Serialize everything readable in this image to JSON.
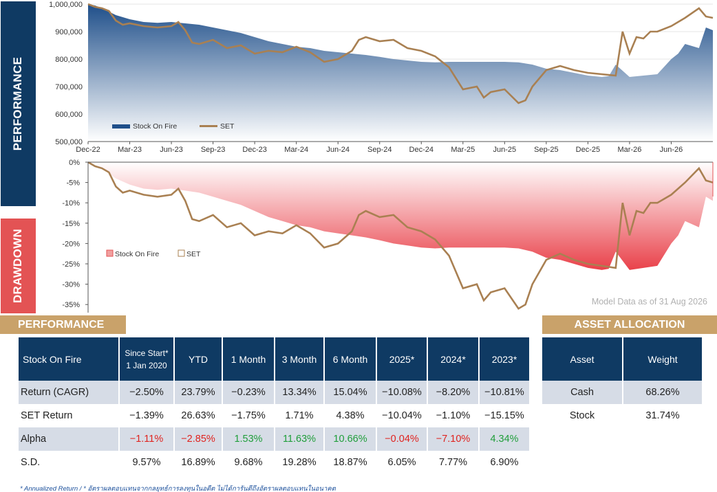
{
  "side_labels": {
    "performance": "PERFORMANCE",
    "drawdown": "DRAWDOWN"
  },
  "colors": {
    "navy": "#0f3a63",
    "red": "#e35354",
    "gold": "#c9a26a",
    "set_line": "#a98052",
    "fund_fill_top": "#1f4f8a",
    "fund_fill_bottom": "#ffffff",
    "dd_fill_top": "#ffffff",
    "dd_fill_bottom": "#e9414a",
    "positive": "#1f9e3a",
    "negative": "#e0221e",
    "row_alt": "#d6dce6"
  },
  "chart_data": [
    {
      "type": "area",
      "name": "performance",
      "x_tick_labels": [
        "Dec-22",
        "Mar-23",
        "Jun-23",
        "Sep-23",
        "Dec-23",
        "Mar-24",
        "Jun-24",
        "Sep-24",
        "Dec-24",
        "Mar-25",
        "Jun-25",
        "Sep-25",
        "Dec-25",
        "Mar-26",
        "Jun-26"
      ],
      "y_tick_labels": [
        "1,000,000",
        "900,000",
        "800,000",
        "700,000",
        "600,000",
        "500,000"
      ],
      "ylim": [
        500000,
        1000000
      ],
      "x_range_months": [
        0,
        45
      ],
      "legend": [
        "Stock On Fire",
        "SET"
      ],
      "legend_position": "bottom-left",
      "series": [
        {
          "name": "Stock On Fire",
          "x": [
            0,
            0.5,
            1,
            2,
            3,
            4,
            5,
            6,
            7,
            8,
            9,
            10,
            11,
            12,
            13,
            14,
            15,
            16,
            17,
            18,
            19,
            20,
            21,
            22,
            23,
            24,
            25,
            26,
            27,
            28,
            29,
            30,
            31,
            32,
            33,
            34,
            35,
            36,
            37,
            37.5,
            38,
            39,
            40,
            41,
            42,
            42.5,
            43,
            44,
            44.5,
            45
          ],
          "y": [
            1000000,
            995000,
            985000,
            960000,
            945000,
            935000,
            932000,
            935000,
            930000,
            925000,
            915000,
            905000,
            895000,
            880000,
            865000,
            855000,
            845000,
            840000,
            830000,
            825000,
            820000,
            815000,
            808000,
            800000,
            795000,
            790000,
            788000,
            790000,
            790000,
            790000,
            790000,
            790000,
            788000,
            780000,
            765000,
            760000,
            750000,
            740000,
            735000,
            738000,
            780000,
            735000,
            740000,
            745000,
            800000,
            820000,
            855000,
            840000,
            915000,
            905000
          ]
        },
        {
          "name": "SET",
          "x": [
            0,
            0.5,
            1,
            1.5,
            2,
            2.5,
            3,
            4,
            5,
            6,
            6.5,
            7,
            7.5,
            8,
            9,
            10,
            11,
            12,
            13,
            14,
            15,
            16,
            17,
            18,
            19,
            19.5,
            20,
            21,
            22,
            23,
            24,
            25,
            26,
            27,
            28,
            28.5,
            29,
            30,
            31,
            31.5,
            32,
            33,
            34,
            35,
            36,
            37,
            38,
            38.5,
            39,
            39.5,
            40,
            40.5,
            41,
            42,
            43,
            44,
            44.5,
            45
          ],
          "y": [
            1000000,
            990000,
            985000,
            975000,
            940000,
            925000,
            930000,
            920000,
            915000,
            920000,
            935000,
            905000,
            860000,
            855000,
            870000,
            840000,
            850000,
            820000,
            830000,
            825000,
            845000,
            825000,
            790000,
            800000,
            830000,
            870000,
            880000,
            865000,
            870000,
            840000,
            830000,
            810000,
            770000,
            690000,
            700000,
            660000,
            680000,
            690000,
            640000,
            650000,
            700000,
            760000,
            775000,
            760000,
            750000,
            745000,
            740000,
            900000,
            820000,
            880000,
            875000,
            900000,
            900000,
            920000,
            950000,
            985000,
            955000,
            950000
          ]
        }
      ]
    },
    {
      "type": "area",
      "name": "drawdown",
      "y_tick_labels": [
        "0%",
        "-5%",
        "-10%",
        "-15%",
        "-20%",
        "-25%",
        "-30%",
        "-35%"
      ],
      "ylim": [
        -0.37,
        0
      ],
      "x_range_months": [
        0,
        45
      ],
      "legend": [
        "Stock On Fire",
        "SET"
      ],
      "legend_position": "bottom-left",
      "series": [
        {
          "name": "Stock On Fire",
          "x": [
            0,
            0.5,
            1,
            2,
            3,
            4,
            5,
            6,
            7,
            8,
            9,
            10,
            11,
            12,
            13,
            14,
            15,
            16,
            17,
            18,
            19,
            20,
            21,
            22,
            23,
            24,
            25,
            26,
            27,
            28,
            29,
            30,
            31,
            32,
            33,
            34,
            35,
            36,
            37,
            37.5,
            38,
            39,
            40,
            41,
            42,
            42.5,
            43,
            44,
            44.5,
            45
          ],
          "y": [
            0,
            -0.005,
            -0.015,
            -0.04,
            -0.055,
            -0.065,
            -0.068,
            -0.065,
            -0.07,
            -0.075,
            -0.085,
            -0.095,
            -0.105,
            -0.12,
            -0.135,
            -0.145,
            -0.155,
            -0.16,
            -0.17,
            -0.175,
            -0.18,
            -0.185,
            -0.192,
            -0.2,
            -0.205,
            -0.21,
            -0.212,
            -0.21,
            -0.21,
            -0.21,
            -0.21,
            -0.21,
            -0.212,
            -0.22,
            -0.235,
            -0.24,
            -0.25,
            -0.26,
            -0.265,
            -0.262,
            -0.22,
            -0.265,
            -0.26,
            -0.255,
            -0.2,
            -0.18,
            -0.145,
            -0.16,
            -0.085,
            -0.095
          ]
        },
        {
          "name": "SET",
          "x": [
            0,
            0.5,
            1,
            1.5,
            2,
            2.5,
            3,
            4,
            5,
            6,
            6.5,
            7,
            7.5,
            8,
            9,
            10,
            11,
            12,
            13,
            14,
            15,
            16,
            17,
            18,
            19,
            19.5,
            20,
            21,
            22,
            23,
            24,
            25,
            26,
            27,
            28,
            28.5,
            29,
            30,
            31,
            31.5,
            32,
            33,
            34,
            35,
            36,
            37,
            38,
            38.5,
            39,
            39.5,
            40,
            40.5,
            41,
            42,
            43,
            44,
            44.5,
            45
          ],
          "y": [
            0,
            -0.01,
            -0.015,
            -0.025,
            -0.06,
            -0.075,
            -0.07,
            -0.08,
            -0.085,
            -0.08,
            -0.065,
            -0.095,
            -0.14,
            -0.145,
            -0.13,
            -0.16,
            -0.15,
            -0.18,
            -0.17,
            -0.175,
            -0.155,
            -0.175,
            -0.21,
            -0.2,
            -0.17,
            -0.13,
            -0.12,
            -0.135,
            -0.13,
            -0.16,
            -0.17,
            -0.19,
            -0.23,
            -0.31,
            -0.3,
            -0.34,
            -0.32,
            -0.31,
            -0.36,
            -0.35,
            -0.3,
            -0.24,
            -0.225,
            -0.24,
            -0.25,
            -0.255,
            -0.26,
            -0.1,
            -0.18,
            -0.12,
            -0.125,
            -0.1,
            -0.1,
            -0.08,
            -0.05,
            -0.015,
            -0.045,
            -0.05
          ]
        }
      ]
    },
    {
      "type": "table",
      "name": "performance",
      "columns": [
        "Stock On Fire",
        "Since Start*\n1 Jan 2020",
        "YTD",
        "1 Month",
        "3 Month",
        "6 Month",
        "2025*",
        "2024*",
        "2023*"
      ],
      "rows": [
        {
          "label": "Return (CAGR)",
          "values": [
            "−2.50%",
            "23.79%",
            "−0.23%",
            "13.34%",
            "15.04%",
            "−10.08%",
            "−8.20%",
            "−10.81%"
          ]
        },
        {
          "label": "SET Return",
          "values": [
            "−1.39%",
            "26.63%",
            "−1.75%",
            "1.71%",
            "4.38%",
            "−10.04%",
            "−1.10%",
            "−15.15%"
          ]
        },
        {
          "label": "Alpha",
          "values": [
            "−1.11%",
            "−2.85%",
            "1.53%",
            "11.63%",
            "10.66%",
            "−0.04%",
            "−7.10%",
            "4.34%"
          ]
        },
        {
          "label": "S.D.",
          "values": [
            "9.57%",
            "16.89%",
            "9.68%",
            "19.28%",
            "18.87%",
            "6.05%",
            "7.77%",
            "6.90%"
          ]
        }
      ]
    },
    {
      "type": "table",
      "name": "asset allocation",
      "columns": [
        "Asset",
        "Weight"
      ],
      "rows": [
        {
          "label": "Cash",
          "values": [
            "68.26%"
          ]
        },
        {
          "label": "Stock",
          "values": [
            "31.74%"
          ]
        }
      ]
    }
  ],
  "model_data_note": "Model Data as of 31 Aug 2026",
  "sections": {
    "performance_title": "PERFORMANCE",
    "allocation_title": "ASSET ALLOCATION"
  },
  "perf_table": {
    "header": {
      "name": "Stock On Fire",
      "since_line1": "Since Start*",
      "since_line2": "1 Jan 2020",
      "ytd": "YTD",
      "m1": "1 Month",
      "m3": "3 Month",
      "m6": "6 Month",
      "y2025": "2025*",
      "y2024": "2024*",
      "y2023": "2023*"
    },
    "rows": [
      {
        "label": "Return (CAGR)",
        "cells": [
          "−2.50%",
          "23.79%",
          "−0.23%",
          "13.34%",
          "15.04%",
          "−10.08%",
          "−8.20%",
          "−10.81%"
        ]
      },
      {
        "label": "SET Return",
        "cells": [
          "−1.39%",
          "26.63%",
          "−1.75%",
          "1.71%",
          "4.38%",
          "−10.04%",
          "−1.10%",
          "−15.15%"
        ]
      },
      {
        "label": "Alpha",
        "cells": [
          "−1.11%",
          "−2.85%",
          "1.53%",
          "11.63%",
          "10.66%",
          "−0.04%",
          "−7.10%",
          "4.34%"
        ],
        "signs": [
          "neg",
          "neg",
          "pos",
          "pos",
          "pos",
          "neg",
          "neg",
          "pos"
        ]
      },
      {
        "label": "S.D.",
        "cells": [
          "9.57%",
          "16.89%",
          "9.68%",
          "19.28%",
          "18.87%",
          "6.05%",
          "7.77%",
          "6.90%"
        ]
      }
    ]
  },
  "alloc_table": {
    "header": {
      "asset": "Asset",
      "weight": "Weight"
    },
    "rows": [
      {
        "asset": "Cash",
        "weight": "68.26%"
      },
      {
        "asset": "Stock",
        "weight": "31.74%"
      }
    ]
  },
  "footnote": "* Annualized Return  /  * อัตราผลตอบแทนจากกลยุทธ์การลงทุนในอดีต ไม่ได้การันตีถึงอัตราผลตอบแทนในอนาคต"
}
